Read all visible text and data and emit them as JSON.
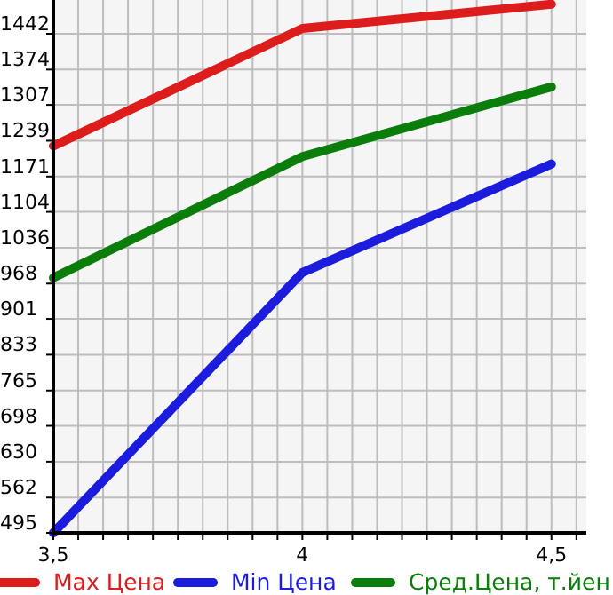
{
  "chart_data": {
    "type": "line",
    "x": [
      3.5,
      4,
      4.5
    ],
    "series": [
      {
        "name": "Max Цена",
        "color": "#dd1c1c",
        "values": [
          1229,
          1452,
          1498
        ]
      },
      {
        "name": "Min Цена",
        "color": "#1c1cdd",
        "values": [
          495,
          989,
          1195
        ]
      },
      {
        "name": "Сред.Цена, т.йен",
        "color": "#0a7d0a",
        "values": [
          979,
          1209,
          1341
        ]
      }
    ],
    "xlim": [
      3.5,
      4.57
    ],
    "xticks": [
      {
        "value": 3.5,
        "label": "3,5"
      },
      {
        "value": 3.55,
        "label": null
      },
      {
        "value": 3.6,
        "label": null
      },
      {
        "value": 3.65,
        "label": null
      },
      {
        "value": 3.7,
        "label": null
      },
      {
        "value": 3.75,
        "label": null
      },
      {
        "value": 3.8,
        "label": null
      },
      {
        "value": 3.85,
        "label": null
      },
      {
        "value": 3.9,
        "label": null
      },
      {
        "value": 3.95,
        "label": null
      },
      4,
      {
        "value": 4.05,
        "label": null
      },
      {
        "value": 4.1,
        "label": null
      },
      {
        "value": 4.15,
        "label": null
      },
      {
        "value": 4.2,
        "label": null
      },
      {
        "value": 4.25,
        "label": null
      },
      {
        "value": 4.3,
        "label": null
      },
      {
        "value": 4.35,
        "label": null
      },
      {
        "value": 4.4,
        "label": null
      },
      {
        "value": 4.45,
        "label": null
      },
      {
        "value": 4.5,
        "label": "4,5"
      },
      {
        "value": 4.55,
        "label": null
      }
    ],
    "ylim": [
      495,
      1506
    ],
    "yticks": [
      495,
      562,
      630,
      698,
      765,
      833,
      901,
      968,
      1036,
      1104,
      1171,
      1239,
      1307,
      1374,
      1442
    ],
    "grid": true,
    "legend": "bottom",
    "marker": "none",
    "line_style": "solid"
  }
}
